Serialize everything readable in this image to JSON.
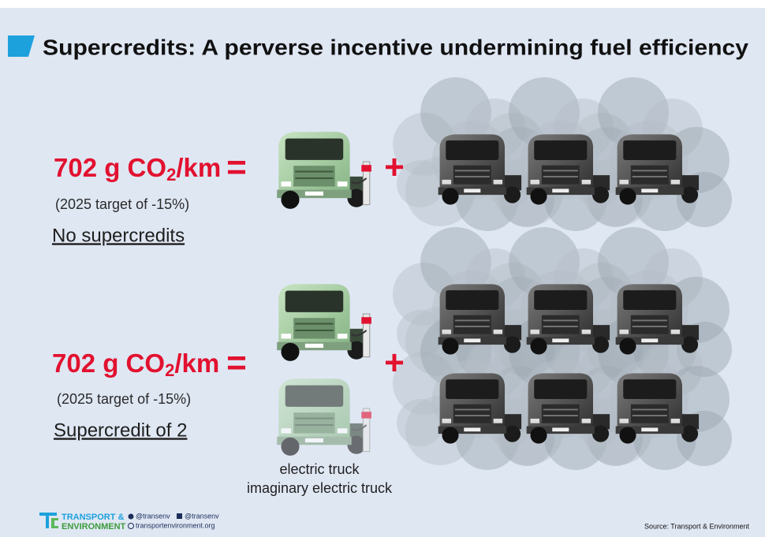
{
  "title": "Supercredits: A perverse incentive undermining fuel efficiency",
  "rows": [
    {
      "emission": "702 g CO",
      "subscript": "2",
      "unit": "/km",
      "equals": "=",
      "target": "(2025 target of -15%)",
      "label": "No supercredits",
      "plus": "+"
    },
    {
      "emission": "702 g CO",
      "subscript": "2",
      "unit": "/km",
      "equals": "=",
      "target": "(2025 target of -15%)",
      "label": "Supercredit of 2",
      "plus": "+"
    }
  ],
  "legend": [
    "electric truck",
    "imaginary electric truck"
  ],
  "footer": {
    "org_line1": "TRANSPORT &",
    "org_line2": "ENVIRONMENT",
    "twitter": "@transenv",
    "facebook": "@transenv",
    "website": "transportenvironment.org",
    "source": "Source: Transport & Environment"
  }
}
